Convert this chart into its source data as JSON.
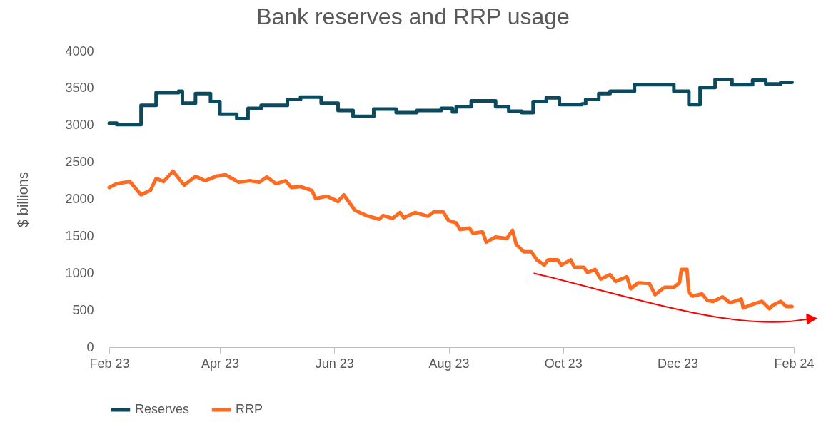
{
  "chart_data": {
    "type": "line",
    "title": "Bank reserves and RRP usage",
    "ylabel": "$ billions",
    "xlim": [
      "2023-02-01",
      "2024-02-01"
    ],
    "xticks": [
      {
        "value": "2023-02-01",
        "label": "Feb 23"
      },
      {
        "value": "2023-04-01",
        "label": "Apr 23"
      },
      {
        "value": "2023-06-01",
        "label": "Jun 23"
      },
      {
        "value": "2023-08-01",
        "label": "Aug 23"
      },
      {
        "value": "2023-10-01",
        "label": "Oct 23"
      },
      {
        "value": "2023-12-01",
        "label": "Dec 23"
      },
      {
        "value": "2024-02-01",
        "label": "Feb 24"
      }
    ],
    "ylim": [
      0,
      4000
    ],
    "yticks": [
      0,
      500,
      1000,
      1500,
      2000,
      2500,
      3000,
      3500,
      4000
    ],
    "legend": "bottom",
    "series": [
      {
        "name": "Reserves",
        "color": "#0b4a5e",
        "type": "step",
        "x": [
          "2023-02-01",
          "2023-02-05",
          "2023-02-18",
          "2023-02-26",
          "2023-03-10",
          "2023-03-12",
          "2023-03-19",
          "2023-03-27",
          "2023-04-01",
          "2023-04-10",
          "2023-04-16",
          "2023-04-23",
          "2023-05-07",
          "2023-05-14",
          "2023-05-25",
          "2023-06-03",
          "2023-06-11",
          "2023-06-22",
          "2023-07-04",
          "2023-07-15",
          "2023-07-28",
          "2023-08-03",
          "2023-08-05",
          "2023-08-13",
          "2023-08-26",
          "2023-09-02",
          "2023-09-09",
          "2023-09-15",
          "2023-09-22",
          "2023-09-29",
          "2023-10-11",
          "2023-10-13",
          "2023-10-20",
          "2023-10-26",
          "2023-11-08",
          "2023-11-29",
          "2023-12-07",
          "2023-12-13",
          "2023-12-21",
          "2023-12-30",
          "2024-01-10",
          "2024-01-17",
          "2024-01-25",
          "2024-01-31"
        ],
        "values": [
          3030,
          3010,
          3270,
          3440,
          3460,
          3300,
          3430,
          3320,
          3150,
          3090,
          3230,
          3270,
          3350,
          3380,
          3300,
          3200,
          3120,
          3220,
          3170,
          3200,
          3230,
          3180,
          3250,
          3330,
          3250,
          3190,
          3170,
          3320,
          3370,
          3280,
          3290,
          3350,
          3430,
          3460,
          3550,
          3460,
          3280,
          3510,
          3620,
          3550,
          3610,
          3560,
          3580,
          3580
        ]
      },
      {
        "name": "RRP",
        "color": "#ff6a21",
        "type": "line",
        "x": [
          "2023-02-01",
          "2023-02-05",
          "2023-02-12",
          "2023-02-18",
          "2023-02-23",
          "2023-02-26",
          "2023-03-02",
          "2023-03-07",
          "2023-03-13",
          "2023-03-19",
          "2023-03-24",
          "2023-03-30",
          "2023-04-04",
          "2023-04-11",
          "2023-04-17",
          "2023-04-22",
          "2023-04-26",
          "2023-05-01",
          "2023-05-06",
          "2023-05-09",
          "2023-05-14",
          "2023-05-20",
          "2023-05-22",
          "2023-05-28",
          "2023-06-03",
          "2023-06-06",
          "2023-06-12",
          "2023-06-18",
          "2023-06-25",
          "2023-06-27",
          "2023-07-02",
          "2023-07-06",
          "2023-07-08",
          "2023-07-14",
          "2023-07-21",
          "2023-07-24",
          "2023-07-29",
          "2023-08-01",
          "2023-08-05",
          "2023-08-07",
          "2023-08-12",
          "2023-08-14",
          "2023-08-19",
          "2023-08-21",
          "2023-08-26",
          "2023-09-01",
          "2023-09-04",
          "2023-09-06",
          "2023-09-10",
          "2023-09-14",
          "2023-09-17",
          "2023-09-21",
          "2023-09-23",
          "2023-09-28",
          "2023-09-30",
          "2023-10-05",
          "2023-10-07",
          "2023-10-12",
          "2023-10-14",
          "2023-10-18",
          "2023-10-21",
          "2023-10-26",
          "2023-10-29",
          "2023-11-04",
          "2023-11-06",
          "2023-11-10",
          "2023-11-16",
          "2023-11-19",
          "2023-11-24",
          "2023-11-29",
          "2023-12-02",
          "2023-12-03",
          "2023-12-06",
          "2023-12-07",
          "2023-12-09",
          "2023-12-14",
          "2023-12-17",
          "2023-12-20",
          "2023-12-25",
          "2023-12-29",
          "2024-01-04",
          "2024-01-05",
          "2024-01-10",
          "2024-01-15",
          "2024-01-19",
          "2024-01-21",
          "2024-01-25",
          "2024-01-28",
          "2024-01-31"
        ],
        "values": [
          2160,
          2210,
          2240,
          2060,
          2120,
          2280,
          2240,
          2380,
          2190,
          2310,
          2250,
          2310,
          2330,
          2230,
          2250,
          2230,
          2300,
          2210,
          2250,
          2160,
          2170,
          2120,
          2010,
          2040,
          1970,
          2060,
          1850,
          1780,
          1730,
          1780,
          1740,
          1820,
          1750,
          1820,
          1770,
          1830,
          1830,
          1710,
          1680,
          1590,
          1610,
          1540,
          1560,
          1420,
          1490,
          1470,
          1580,
          1390,
          1290,
          1290,
          1180,
          1110,
          1180,
          1180,
          1110,
          1180,
          1080,
          1080,
          1010,
          1050,
          920,
          980,
          890,
          950,
          790,
          870,
          860,
          710,
          810,
          810,
          870,
          1050,
          1050,
          740,
          690,
          720,
          630,
          620,
          680,
          600,
          650,
          530,
          580,
          620,
          520,
          570,
          620,
          550,
          550
        ]
      }
    ]
  }
}
